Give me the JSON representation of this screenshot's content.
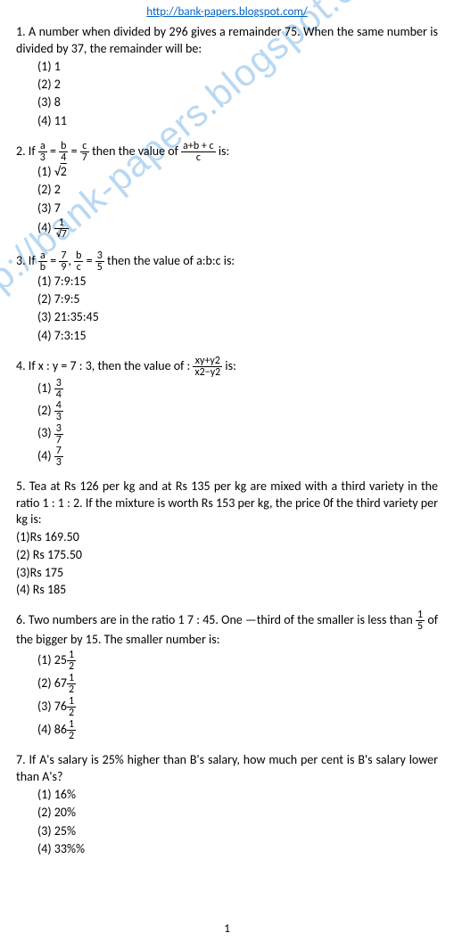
{
  "header": {
    "url": "http://bank-papers.blogspot.com/"
  },
  "watermark": "http://bank-papers.blogspot.com/",
  "page_number": "1",
  "q1": {
    "text": "1. A number when divided by 296 gives a remainder 75. When the same number is divided by 37, the remainder will be:",
    "opts": [
      "(1)  1",
      "(2)  2",
      "(3)  8",
      "(4)  11"
    ]
  },
  "q2": {
    "prefix": "2. If ",
    "f1n": "a",
    "f1d": "3",
    "eq1": " = ",
    "f2n": "b",
    "f2d": "4",
    "eq2": " =  ",
    "f3n": "c",
    "f3d": "7",
    "mid": "  then the value of  ",
    "f4n": "a+b + c",
    "f4d": "c",
    "suffix": " is:",
    "opt1a": "(1)  ",
    "opt1b": "2",
    "opt2": "(2)  2",
    "opt3": "(3)  7",
    "opt4a": "(4)  ",
    "opt4n": "1",
    "opt4d": "√7"
  },
  "q3": {
    "prefix": "3. If ",
    "f1n": "a",
    "f1d": "b",
    "eq1": " = ",
    "f2n": "7",
    "f2d": "9",
    "comma": ", ",
    "f3n": "b",
    "f3d": "c",
    "eq2": " = ",
    "f4n": "3",
    "f4d": "5",
    "suffix": " then the value of a:b:c is:",
    "opts": [
      "(1)  7:9:15",
      "(2)  7:9:5",
      "(3)  21:35:45",
      "(4)  7:3:15"
    ]
  },
  "q4": {
    "prefix": "4. If x : y = 7 : 3, then the value of  :  ",
    "f1n": "xy+y2",
    "f1d": "x2−y2",
    "suffix": " is:",
    "o1a": "(1)  ",
    "o1n": "3",
    "o1d": "4",
    "o2a": "(2)  ",
    "o2n": "4",
    "o2d": "3",
    "o3a": "(3)  ",
    "o3n": "3",
    "o3d": "7",
    "o4a": "(4)  ",
    "o4n": "7",
    "o4d": "3"
  },
  "q5": {
    "text": "5. Tea at Rs 126 per kg and at Rs 135 per kg are mixed with a third variety in the ratio 1 : 1 : 2. If the mixture is worth Rs 153 per kg, the price 0f the third variety per kg is:",
    "opts": [
      "(1)Rs 169.50",
      "(2) Rs 175.50",
      "(3)Rs 175",
      "(4) Rs 185"
    ]
  },
  "q6": {
    "line1": "6. Two numbers are in the ratio 1 7 : 45. One —third of the smaller is less ",
    "line2a": "than ",
    "f1n": "1",
    "f1d": "5",
    "line2b": " of the bigger by 15. The smaller number is:",
    "o1a": "(1)  25",
    "o1n": "1",
    "o1d": "2",
    "o2a": "(2)  67",
    "o2n": "1",
    "o2d": "2",
    "o3a": "(3)  76",
    "o3n": "1",
    "o3d": "2",
    "o4a": "(4)  86",
    "o4n": "1",
    "o4d": "2"
  },
  "q7": {
    "text": "7. If A's salary is 25% higher than B's salary, how much per cent is B's salary lower than A's?",
    "opts": [
      "(1)  16%",
      "(2)  20%",
      "(3)  25%",
      "(4)  33%%"
    ]
  }
}
